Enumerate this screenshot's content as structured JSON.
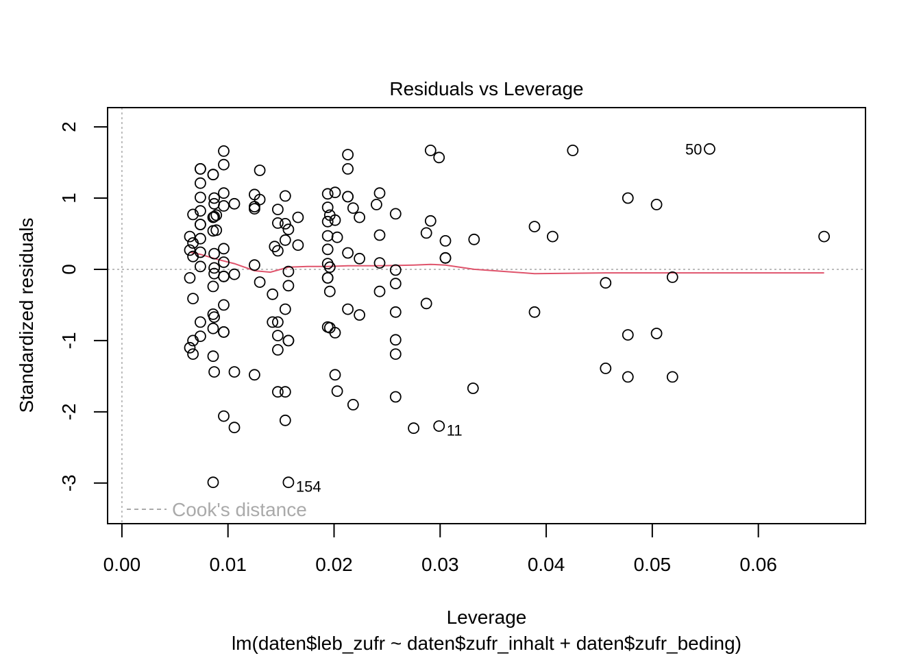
{
  "chart_data": {
    "type": "scatter",
    "title": "Residuals vs Leverage",
    "xlabel": "Leverage",
    "subtitle": "lm(daten$leb_zufr ~ daten$zufr_inhalt + daten$zufr_beding)",
    "ylabel": "Standardized residuals",
    "xlim": [
      -0.00135,
      0.0701
    ],
    "ylim": [
      -3.57,
      2.27
    ],
    "xticks": [
      0,
      0.01,
      0.02,
      0.03,
      0.04,
      0.05,
      0.06
    ],
    "xtick_labels": [
      "0.00",
      "0.01",
      "0.02",
      "0.03",
      "0.04",
      "0.05",
      "0.06"
    ],
    "yticks": [
      -3,
      -2,
      -1,
      0,
      1,
      2
    ],
    "ytick_labels": [
      "-3",
      "-2",
      "-1",
      "0",
      "1",
      "2"
    ],
    "legend": {
      "label": "Cook's distance",
      "position": "bottom-left",
      "color": "#aaaaaa"
    },
    "reference_lines": {
      "x": 0,
      "y": 0,
      "color": "#bbbbbb"
    },
    "points": [
      [
        0.0074,
        1.41
      ],
      [
        0.0074,
        1.41
      ],
      [
        0.0074,
        1.21
      ],
      [
        0.0074,
        1.01
      ],
      [
        0.0074,
        0.82
      ],
      [
        0.0074,
        0.63
      ],
      [
        0.0074,
        0.63
      ],
      [
        0.0074,
        0.43
      ],
      [
        0.0074,
        0.24
      ],
      [
        0.0074,
        0.04
      ],
      [
        0.0074,
        -0.74
      ],
      [
        0.0074,
        -0.94
      ],
      [
        0.0067,
        0.77
      ],
      [
        0.0067,
        0.37
      ],
      [
        0.0067,
        0.18
      ],
      [
        0.0067,
        -0.41
      ],
      [
        0.0067,
        -1.0
      ],
      [
        0.0067,
        -1.19
      ],
      [
        0.0064,
        0.46
      ],
      [
        0.0064,
        0.27
      ],
      [
        0.0064,
        -0.12
      ],
      [
        0.0064,
        -1.1
      ],
      [
        0.0086,
        1.33
      ],
      [
        0.0086,
        1.33
      ],
      [
        0.0086,
        0.73
      ],
      [
        0.0086,
        0.54
      ],
      [
        0.0086,
        -0.24
      ],
      [
        0.0086,
        -0.63
      ],
      [
        0.0086,
        -0.83
      ],
      [
        0.0086,
        -1.22
      ],
      [
        0.0086,
        -2.99
      ],
      [
        0.0087,
        1.0
      ],
      [
        0.0087,
        0.92
      ],
      [
        0.0087,
        0.74
      ],
      [
        0.0087,
        0.22
      ],
      [
        0.0087,
        0.02
      ],
      [
        0.0087,
        -0.06
      ],
      [
        0.0087,
        -0.67
      ],
      [
        0.0087,
        -1.44
      ],
      [
        0.0089,
        0.76
      ],
      [
        0.0089,
        0.55
      ],
      [
        0.0096,
        1.66
      ],
      [
        0.0096,
        1.47
      ],
      [
        0.0096,
        1.07
      ],
      [
        0.0096,
        0.89
      ],
      [
        0.0096,
        0.29
      ],
      [
        0.0096,
        0.1
      ],
      [
        0.0096,
        -0.1
      ],
      [
        0.0096,
        -0.1
      ],
      [
        0.0096,
        -0.5
      ],
      [
        0.0096,
        -0.88
      ],
      [
        0.0096,
        -0.88
      ],
      [
        0.0096,
        -2.06
      ],
      [
        0.0106,
        0.92
      ],
      [
        0.0106,
        -0.07
      ],
      [
        0.0106,
        -1.44
      ],
      [
        0.0106,
        -2.22
      ],
      [
        0.0125,
        1.05
      ],
      [
        0.0125,
        0.88
      ],
      [
        0.0125,
        0.85
      ],
      [
        0.0125,
        0.06
      ],
      [
        0.0125,
        -1.48
      ],
      [
        0.013,
        1.39
      ],
      [
        0.013,
        0.98
      ],
      [
        0.013,
        -0.18
      ],
      [
        0.0142,
        -0.35
      ],
      [
        0.0142,
        -0.74
      ],
      [
        0.0144,
        0.32
      ],
      [
        0.0147,
        0.84
      ],
      [
        0.0147,
        0.65
      ],
      [
        0.0147,
        0.26
      ],
      [
        0.0147,
        -0.74
      ],
      [
        0.0147,
        -0.93
      ],
      [
        0.0147,
        -1.13
      ],
      [
        0.0147,
        -1.72
      ],
      [
        0.0154,
        1.03
      ],
      [
        0.0154,
        0.64
      ],
      [
        0.0154,
        0.41
      ],
      [
        0.0154,
        -0.56
      ],
      [
        0.0154,
        -1.72
      ],
      [
        0.0154,
        -2.12
      ],
      [
        0.0157,
        0.56
      ],
      [
        0.0157,
        -0.03
      ],
      [
        0.0157,
        -0.23
      ],
      [
        0.0157,
        -1.0
      ],
      [
        0.0157,
        -1.0
      ],
      [
        0.0157,
        -2.99
      ],
      [
        0.0166,
        0.73
      ],
      [
        0.0166,
        0.34
      ],
      [
        0.0194,
        1.06
      ],
      [
        0.0194,
        0.87
      ],
      [
        0.0194,
        0.67
      ],
      [
        0.0194,
        0.47
      ],
      [
        0.0194,
        0.28
      ],
      [
        0.0194,
        0.08
      ],
      [
        0.0194,
        -0.12
      ],
      [
        0.0194,
        -0.12
      ],
      [
        0.0194,
        -0.81
      ],
      [
        0.0196,
        0.76
      ],
      [
        0.0196,
        0.03
      ],
      [
        0.0196,
        -0.31
      ],
      [
        0.0196,
        -0.82
      ],
      [
        0.0201,
        1.08
      ],
      [
        0.0201,
        0.69
      ],
      [
        0.0201,
        -0.89
      ],
      [
        0.0201,
        -1.48
      ],
      [
        0.0203,
        0.45
      ],
      [
        0.0203,
        -1.71
      ],
      [
        0.0213,
        1.61
      ],
      [
        0.0213,
        1.41
      ],
      [
        0.0213,
        1.02
      ],
      [
        0.0213,
        1.02
      ],
      [
        0.0213,
        0.23
      ],
      [
        0.0213,
        -0.56
      ],
      [
        0.0218,
        0.86
      ],
      [
        0.0218,
        -1.9
      ],
      [
        0.0224,
        0.73
      ],
      [
        0.0224,
        0.15
      ],
      [
        0.0224,
        -0.64
      ],
      [
        0.024,
        0.91
      ],
      [
        0.0243,
        1.07
      ],
      [
        0.0243,
        0.48
      ],
      [
        0.0243,
        0.09
      ],
      [
        0.0243,
        -0.31
      ],
      [
        0.0258,
        0.78
      ],
      [
        0.0258,
        -0.01
      ],
      [
        0.0258,
        -0.2
      ],
      [
        0.0258,
        -0.6
      ],
      [
        0.0258,
        -0.99
      ],
      [
        0.0258,
        -1.19
      ],
      [
        0.0258,
        -1.79
      ],
      [
        0.0275,
        -2.23
      ],
      [
        0.0287,
        0.51
      ],
      [
        0.0287,
        -0.48
      ],
      [
        0.0291,
        1.67
      ],
      [
        0.0291,
        0.68
      ],
      [
        0.0299,
        1.57
      ],
      [
        0.0299,
        -2.2
      ],
      [
        0.0305,
        0.4
      ],
      [
        0.0305,
        0.16
      ],
      [
        0.0305,
        0.16
      ],
      [
        0.0332,
        0.42
      ],
      [
        0.0331,
        -1.67
      ],
      [
        0.0389,
        0.6
      ],
      [
        0.0389,
        -0.6
      ],
      [
        0.0406,
        0.46
      ],
      [
        0.0425,
        1.67
      ],
      [
        0.0456,
        -0.19
      ],
      [
        0.0456,
        -1.39
      ],
      [
        0.0477,
        1.0
      ],
      [
        0.0477,
        -0.92
      ],
      [
        0.0477,
        -1.51
      ],
      [
        0.0504,
        0.91
      ],
      [
        0.0504,
        -0.9
      ],
      [
        0.0519,
        -0.11
      ],
      [
        0.0519,
        -1.51
      ],
      [
        0.0554,
        1.69
      ],
      [
        0.0662,
        0.46
      ]
    ],
    "point_labels": [
      {
        "label": "50",
        "x": 0.0554,
        "y": 1.69,
        "side": "left"
      },
      {
        "label": "11",
        "x": 0.0299,
        "y": -2.2,
        "side": "right"
      },
      {
        "label": "154",
        "x": 0.0157,
        "y": -2.99,
        "side": "right"
      }
    ],
    "smooth_line": {
      "color": "#df536b",
      "x": [
        0.0064,
        0.0074,
        0.009,
        0.0106,
        0.0125,
        0.014,
        0.0157,
        0.0175,
        0.0194,
        0.0213,
        0.0243,
        0.0275,
        0.0291,
        0.0305,
        0.0332,
        0.0389,
        0.0456,
        0.0519,
        0.0662
      ],
      "y": [
        0.24,
        0.21,
        0.14,
        0.08,
        -0.02,
        -0.04,
        0.03,
        0.04,
        0.04,
        0.05,
        0.05,
        0.06,
        0.07,
        0.06,
        0.0,
        -0.06,
        -0.05,
        -0.05,
        -0.05
      ]
    }
  }
}
